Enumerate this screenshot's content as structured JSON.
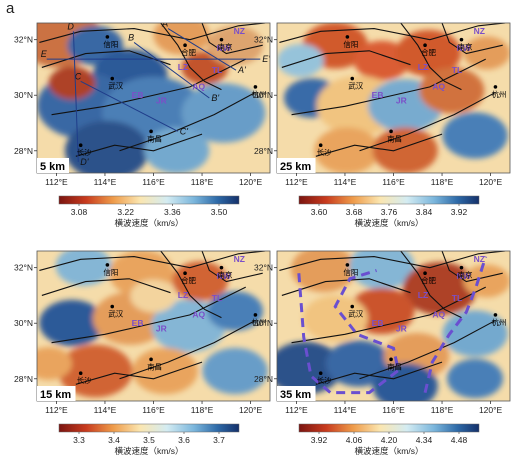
{
  "figure_label": "a",
  "axes": {
    "lat_ticks": [
      "32°N",
      "30°N",
      "28°N"
    ],
    "lon_ticks": [
      "112°E",
      "114°E",
      "116°E",
      "118°E",
      "120°E"
    ]
  },
  "cities": [
    {
      "name": "信阳"
    },
    {
      "name": "合肥"
    },
    {
      "name": "南京"
    },
    {
      "name": "武汉"
    },
    {
      "name": "杭州"
    },
    {
      "name": "南昌"
    },
    {
      "name": "长沙"
    }
  ],
  "block_labels": [
    "NZ",
    "NW",
    "LZ",
    "TL",
    "AQ",
    "EB",
    "JR"
  ],
  "profile_labels": {
    "starts": [
      "A",
      "B",
      "C",
      "D",
      "E"
    ],
    "ends": [
      "A'",
      "B'",
      "C'",
      "D'",
      "E'"
    ]
  },
  "panels": [
    {
      "id": "p5",
      "depth": "5 km",
      "colorbar": {
        "ticks": [
          "3.08",
          "3.22",
          "3.36",
          "3.50"
        ],
        "label": "横波速度（km/s）"
      }
    },
    {
      "id": "p25",
      "depth": "25 km",
      "colorbar": {
        "ticks": [
          "3.60",
          "3.68",
          "3.76",
          "3.84",
          "3.92"
        ],
        "label": "横波速度（km/s）"
      }
    },
    {
      "id": "p15",
      "depth": "15 km",
      "colorbar": {
        "ticks": [
          "3.3",
          "3.4",
          "3.5",
          "3.6",
          "3.7"
        ],
        "label": "横波速度（km/s）"
      }
    },
    {
      "id": "p35",
      "depth": "35 km",
      "colorbar": {
        "ticks": [
          "3.92",
          "4.06",
          "4.20",
          "4.34",
          "4.48"
        ],
        "label": "横波速度（km/s）"
      }
    }
  ],
  "colors": {
    "block_label": "#7b4fc8",
    "profile_line": "#1f3d8a",
    "dashed_outline": "#6a4fd0",
    "fault_line": "#111111"
  }
}
